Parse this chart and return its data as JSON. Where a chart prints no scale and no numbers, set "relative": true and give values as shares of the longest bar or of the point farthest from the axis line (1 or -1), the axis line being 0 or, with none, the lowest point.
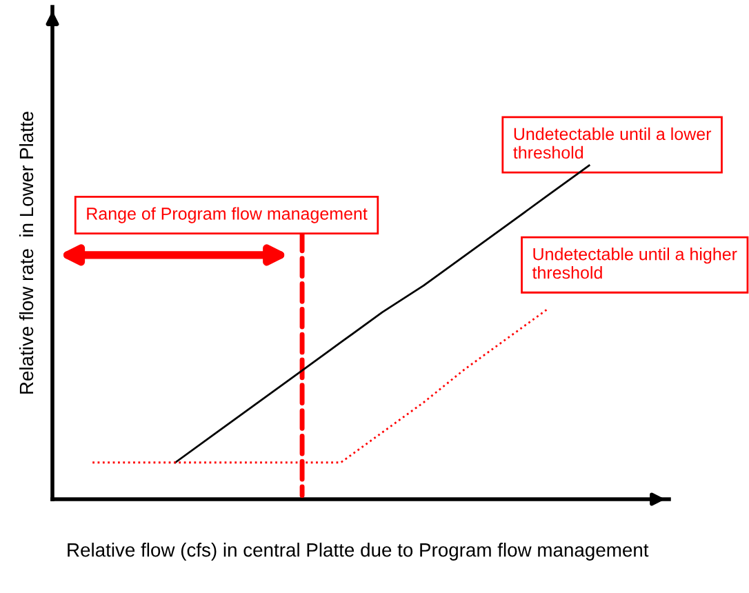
{
  "chart_data": {
    "type": "line",
    "relative": true,
    "xlabel": "Relative flow (cfs) in central Platte due to Program flow management",
    "ylabel": "Relative flow rate  in Lower Platte",
    "categories": [
      null,
      null,
      null,
      null,
      null,
      null,
      null,
      null,
      null,
      null,
      null,
      null,
      null
    ],
    "series": [
      {
        "color": "#000000",
        "line_style": "solid",
        "values": [
          null,
          null,
          0.11,
          0.2,
          0.29,
          0.38,
          0.47,
          0.56,
          0.64,
          0.73,
          0.82,
          0.91,
          1.0
        ]
      },
      {
        "color": "#ff0000",
        "line_style": "dotted",
        "values": [
          0.11,
          0.11,
          0.11,
          0.11,
          0.11,
          0.11,
          0.11,
          0.2,
          0.29,
          0.39,
          0.48,
          0.57,
          null
        ]
      }
    ],
    "annotations": [
      "Undetectable until a lower threshold",
      "Range of Program flow management",
      "Undetectable until a higher threshold"
    ],
    "marker": "none"
  }
}
